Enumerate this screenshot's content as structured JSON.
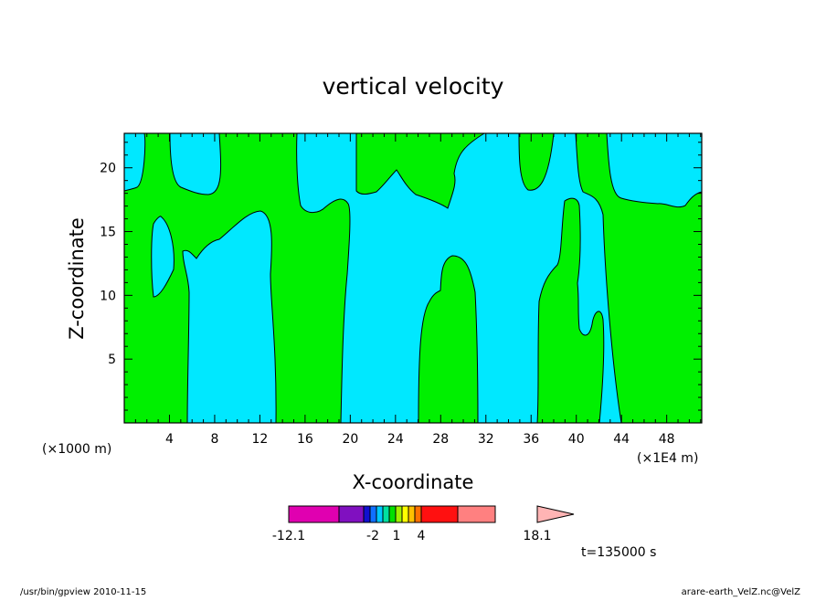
{
  "chart_data": {
    "type": "contour",
    "title": "vertical velocity",
    "xlabel": "X-coordinate",
    "ylabel": "Z-coordinate",
    "x_unit_left": "(×1000 m)",
    "x_unit_right": "(×1E4 m)",
    "x_ticks": [
      4,
      8,
      12,
      16,
      20,
      24,
      28,
      32,
      36,
      40,
      44,
      48
    ],
    "y_ticks": [
      5,
      10,
      15,
      20
    ],
    "xlim": [
      0,
      51.1
    ],
    "ylim": [
      0,
      22.7
    ],
    "fill_colors": {
      "negative": "#00e8ff",
      "positive": "#00f000"
    },
    "colorbar": {
      "labels": [
        "-12.1",
        "-2",
        "1",
        "4",
        "18.1"
      ],
      "segment_colors": [
        "#e000b0",
        "#8010c0",
        "#1010d0",
        "#1070ff",
        "#00c8ff",
        "#00e0a0",
        "#00e000",
        "#a0f000",
        "#ffff00",
        "#ffc000",
        "#ff7000",
        "#ff1010",
        "#ff8080",
        "#ffb4b4"
      ]
    },
    "time_label": "t=135000 s"
  },
  "footer": {
    "left": "/usr/bin/gpview  2010-11-15",
    "right": "arare-earth_VelZ.nc@VelZ"
  }
}
